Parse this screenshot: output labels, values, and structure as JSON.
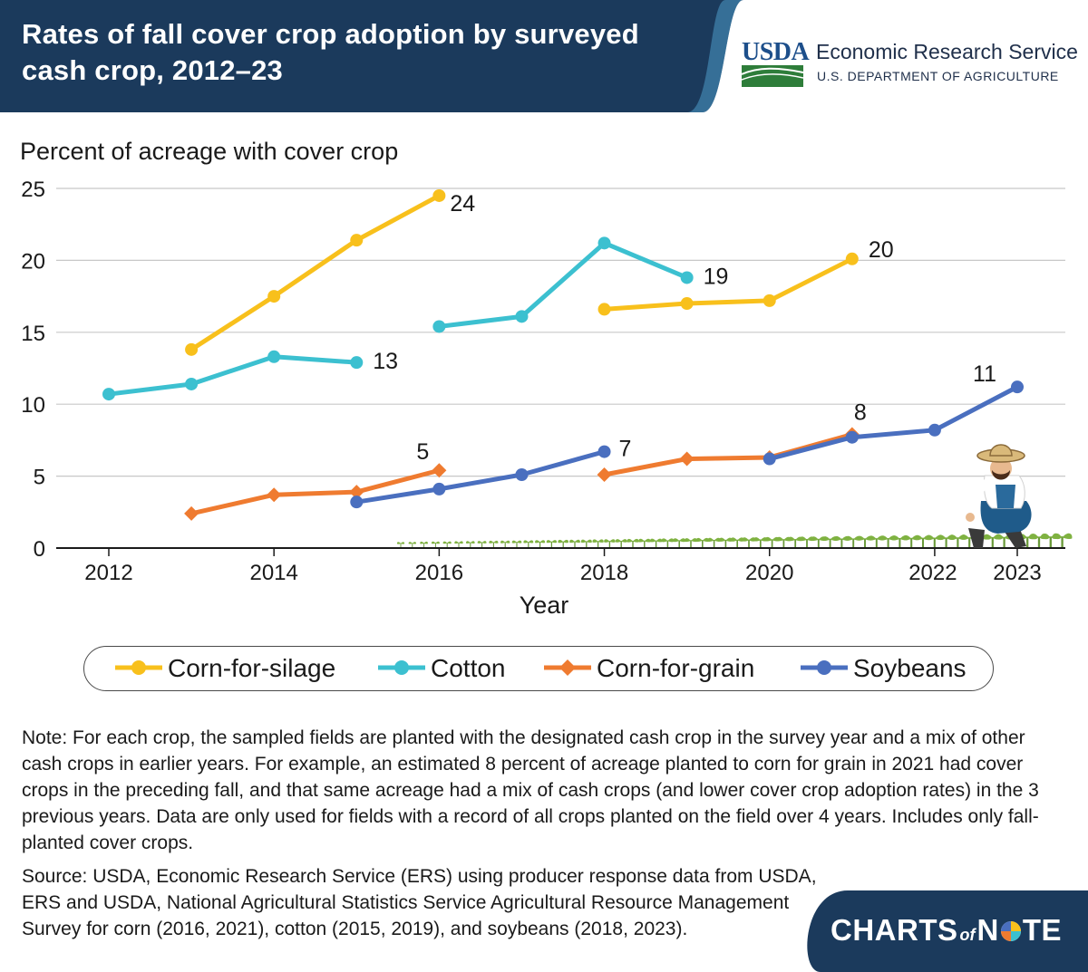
{
  "header": {
    "title": "Rates of fall cover crop adoption by surveyed cash crop, 2012–23",
    "agency_short": "USDA",
    "agency_name": "Economic Research Service",
    "department": "U.S. DEPARTMENT OF AGRICULTURE"
  },
  "colors": {
    "navy": "#1b3a5c",
    "corn_silage": "#f8c01c",
    "cotton": "#3cc0d0",
    "corn_grain": "#ef7b30",
    "soybeans": "#4a6fbf"
  },
  "chart_data": {
    "type": "line",
    "title": "Rates of fall cover crop adoption by surveyed cash crop, 2012–23",
    "ylabel": "Percent of acreage with cover crop",
    "xlabel": "Year",
    "ylim": [
      0,
      25
    ],
    "yticks": [
      0,
      5,
      10,
      15,
      20,
      25
    ],
    "xlim": [
      2011.5,
      2023.4
    ],
    "xticks": [
      2012,
      2014,
      2016,
      2018,
      2020,
      2022,
      2023
    ],
    "grid": "horizontal",
    "legend_position": "bottom",
    "series": [
      {
        "name": "Corn-for-silage",
        "marker": "circle",
        "color": "#f8c01c",
        "segments": [
          {
            "points": [
              [
                2013,
                13.8
              ],
              [
                2014,
                17.5
              ],
              [
                2015,
                21.4
              ],
              [
                2016,
                24.5
              ]
            ],
            "end_label": "24"
          },
          {
            "points": [
              [
                2018,
                16.6
              ],
              [
                2019,
                17.0
              ],
              [
                2020,
                17.2
              ],
              [
                2021,
                20.1
              ]
            ],
            "end_label": "20"
          }
        ]
      },
      {
        "name": "Cotton",
        "marker": "circle",
        "color": "#3cc0d0",
        "segments": [
          {
            "points": [
              [
                2012,
                10.7
              ],
              [
                2013,
                11.4
              ],
              [
                2014,
                13.3
              ],
              [
                2015,
                12.9
              ]
            ],
            "end_label": "13"
          },
          {
            "points": [
              [
                2016,
                15.4
              ],
              [
                2017,
                16.1
              ],
              [
                2018,
                21.2
              ],
              [
                2019,
                18.8
              ]
            ],
            "end_label": "19"
          }
        ]
      },
      {
        "name": "Corn-for-grain",
        "marker": "diamond",
        "color": "#ef7b30",
        "segments": [
          {
            "points": [
              [
                2013,
                2.4
              ],
              [
                2014,
                3.7
              ],
              [
                2015,
                3.9
              ],
              [
                2016,
                5.4
              ]
            ],
            "end_label": "5"
          },
          {
            "points": [
              [
                2018,
                5.1
              ],
              [
                2019,
                6.2
              ],
              [
                2020,
                6.3
              ],
              [
                2021,
                7.9
              ]
            ],
            "end_label": "8"
          }
        ]
      },
      {
        "name": "Soybeans",
        "marker": "circle",
        "color": "#4a6fbf",
        "segments": [
          {
            "points": [
              [
                2015,
                3.2
              ],
              [
                2016,
                4.1
              ],
              [
                2017,
                5.1
              ],
              [
                2018,
                6.7
              ]
            ],
            "end_label": "7"
          },
          {
            "points": [
              [
                2020,
                6.2
              ],
              [
                2021,
                7.7
              ],
              [
                2022,
                8.2
              ],
              [
                2023,
                11.2
              ]
            ],
            "end_label": "11"
          }
        ]
      }
    ]
  },
  "legend": {
    "items": [
      {
        "label": "Corn-for-silage"
      },
      {
        "label": "Cotton"
      },
      {
        "label": "Corn-for-grain"
      },
      {
        "label": "Soybeans"
      }
    ]
  },
  "notes": {
    "note": "Note: For each crop, the sampled fields are planted with the designated cash crop in the survey year and a mix of other cash crops in earlier years. For example, an estimated 8 percent of acreage planted to corn for grain in 2021 had cover crops in the preceding fall, and that same acreage had a mix of cash crops (and lower cover crop adoption rates) in the 3 previous years. Data are only used for fields with a record of all crops planted on the field over 4 years. Includes only fall-planted cover crops.",
    "source": "Source: USDA, Economic Research Service (ERS) using producer response data from USDA, ERS and USDA, National Agricultural Statistics Service Agricultural Resource Management Survey for corn (2016, 2021), cotton (2015, 2019), and soybeans (2018, 2023)."
  },
  "footer": {
    "brand_a": "CHARTS",
    "brand_b": "of",
    "brand_c1": "N",
    "brand_c2": "TE"
  }
}
